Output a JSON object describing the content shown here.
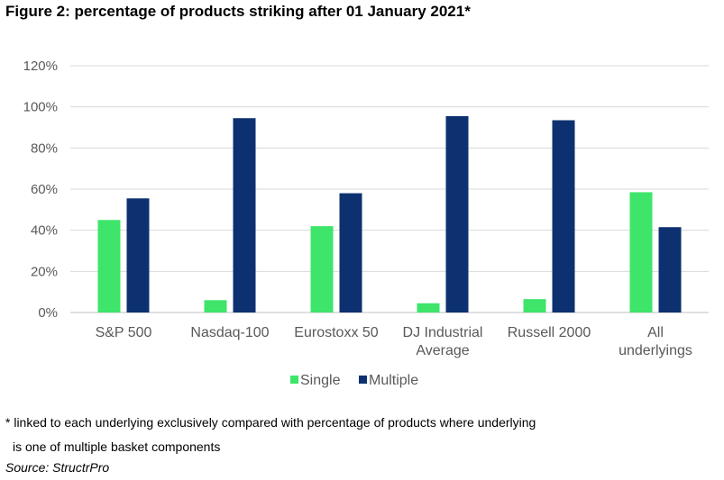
{
  "title": "Figure 2: percentage of products striking after 01 January 2021*",
  "footnote": {
    "line1": "* linked to each underlying exclusively compared with percentage of products where underlying",
    "line2": "is one of multiple basket components"
  },
  "source": "Source: StructrPro",
  "colors": {
    "single": "#3EE56A",
    "multiple": "#0D3170",
    "grid": "#D9D9D9",
    "axis": "#BFBFBF",
    "text": "#595959"
  },
  "chart_data": {
    "type": "bar",
    "categories": [
      [
        "S&P 500"
      ],
      [
        "Nasdaq-100"
      ],
      [
        "Eurostoxx 50"
      ],
      [
        "DJ Industrial",
        "Average"
      ],
      [
        "Russell 2000"
      ],
      [
        "All",
        "underlyings"
      ]
    ],
    "series": [
      {
        "name": "Single",
        "values": [
          45,
          6,
          42,
          4.5,
          6.5,
          58.5
        ]
      },
      {
        "name": "Multiple",
        "values": [
          55.5,
          94.5,
          58,
          95.5,
          93.5,
          41.5
        ]
      }
    ],
    "yticks": [
      "0%",
      "20%",
      "40%",
      "60%",
      "80%",
      "100%",
      "120%"
    ],
    "ylim": [
      0,
      120
    ],
    "grid": true,
    "legend_position": "bottom"
  }
}
